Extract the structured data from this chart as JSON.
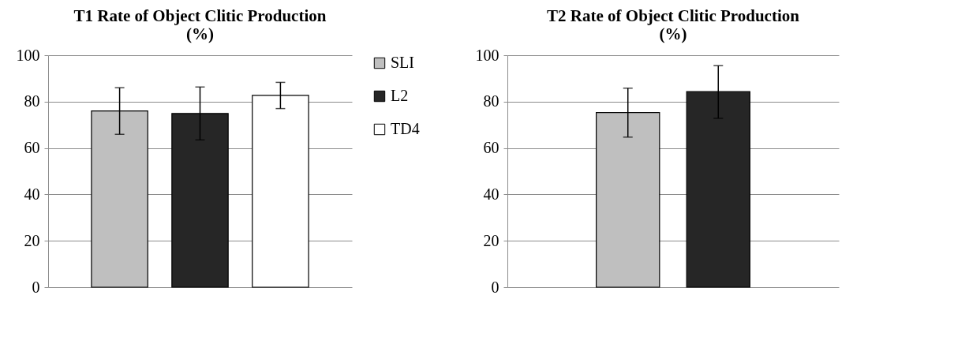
{
  "chart_data": [
    {
      "type": "bar",
      "title": "T1 Rate of Object Clitic Production (%)",
      "categories": [
        null
      ],
      "ylim": [
        0,
        100
      ],
      "yticks": [
        0,
        20,
        40,
        60,
        80,
        100
      ],
      "grid": "y",
      "legend": "right",
      "tick_labels": "y",
      "series": [
        {
          "name": "SLI",
          "color": "#bfbfbf",
          "values": [
            76.0
          ],
          "errors": [
            [
              65.9,
              86.0
            ]
          ]
        },
        {
          "name": "L2",
          "color": "#262626",
          "values": [
            74.9
          ],
          "errors": [
            [
              63.5,
              86.3
            ]
          ]
        },
        {
          "name": "TD4",
          "color": "#ffffff",
          "values": [
            82.7
          ],
          "errors": [
            [
              77.0,
              88.3
            ]
          ]
        }
      ]
    },
    {
      "type": "bar",
      "title": "T2 Rate of Object Clitic Production (%)",
      "categories": [
        null
      ],
      "ylim": [
        0,
        100
      ],
      "yticks": [
        0,
        20,
        40,
        60,
        80,
        100
      ],
      "grid": "y",
      "tick_labels": "y",
      "series": [
        {
          "color": "#bfbfbf",
          "values": [
            75.3
          ],
          "errors": [
            [
              64.7,
              85.8
            ]
          ]
        },
        {
          "color": "#262626",
          "values": [
            84.3
          ],
          "errors": [
            [
              72.8,
              95.5
            ]
          ]
        }
      ]
    }
  ]
}
